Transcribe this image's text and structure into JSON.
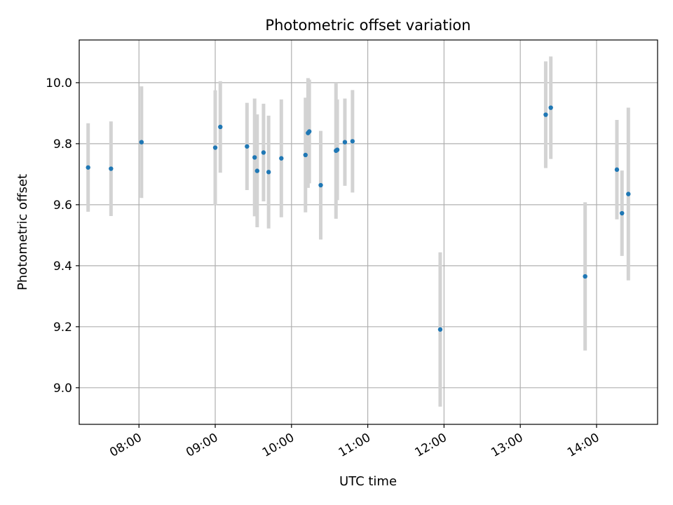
{
  "chart_data": {
    "type": "scatter",
    "title": "Photometric offset variation",
    "xlabel": "UTC time",
    "ylabel": "Photometric offset",
    "x_ticks": [
      "08:00",
      "09:00",
      "10:00",
      "11:00",
      "12:00",
      "13:00",
      "14:00"
    ],
    "y_ticks": [
      "9.0",
      "9.2",
      "9.4",
      "9.6",
      "9.8",
      "10.0"
    ],
    "xlim": [
      "07:13",
      "14:48"
    ],
    "ylim": [
      8.88,
      10.14
    ],
    "grid": true,
    "point_color": "#1f77b4",
    "errorbar_color": "#d3d3d3",
    "points": [
      {
        "time": "07:20",
        "y": 9.722,
        "err": 0.145
      },
      {
        "time": "07:38",
        "y": 9.718,
        "err": 0.155
      },
      {
        "time": "08:02",
        "y": 9.805,
        "err": 0.183
      },
      {
        "time": "09:00",
        "y": 9.787,
        "err": 0.188
      },
      {
        "time": "09:04",
        "y": 9.855,
        "err": 0.15
      },
      {
        "time": "09:25",
        "y": 9.791,
        "err": 0.143
      },
      {
        "time": "09:31",
        "y": 9.755,
        "err": 0.193
      },
      {
        "time": "09:33",
        "y": 9.711,
        "err": 0.185
      },
      {
        "time": "09:38",
        "y": 9.771,
        "err": 0.16
      },
      {
        "time": "09:42",
        "y": 9.707,
        "err": 0.185
      },
      {
        "time": "09:52",
        "y": 9.752,
        "err": 0.193
      },
      {
        "time": "10:11",
        "y": 9.763,
        "err": 0.188
      },
      {
        "time": "10:13",
        "y": 9.835,
        "err": 0.18
      },
      {
        "time": "10:14",
        "y": 9.84,
        "err": 0.17
      },
      {
        "time": "10:23",
        "y": 9.664,
        "err": 0.178
      },
      {
        "time": "10:35",
        "y": 9.777,
        "err": 0.223
      },
      {
        "time": "10:36",
        "y": 9.78,
        "err": 0.165
      },
      {
        "time": "10:42",
        "y": 9.805,
        "err": 0.143
      },
      {
        "time": "10:48",
        "y": 9.808,
        "err": 0.168
      },
      {
        "time": "11:57",
        "y": 9.191,
        "err": 0.253
      },
      {
        "time": "13:20",
        "y": 9.895,
        "err": 0.175
      },
      {
        "time": "13:24",
        "y": 9.918,
        "err": 0.168
      },
      {
        "time": "13:51",
        "y": 9.365,
        "err": 0.243
      },
      {
        "time": "14:16",
        "y": 9.715,
        "err": 0.163
      },
      {
        "time": "14:20",
        "y": 9.572,
        "err": 0.14
      },
      {
        "time": "14:25",
        "y": 9.635,
        "err": 0.283
      }
    ]
  }
}
